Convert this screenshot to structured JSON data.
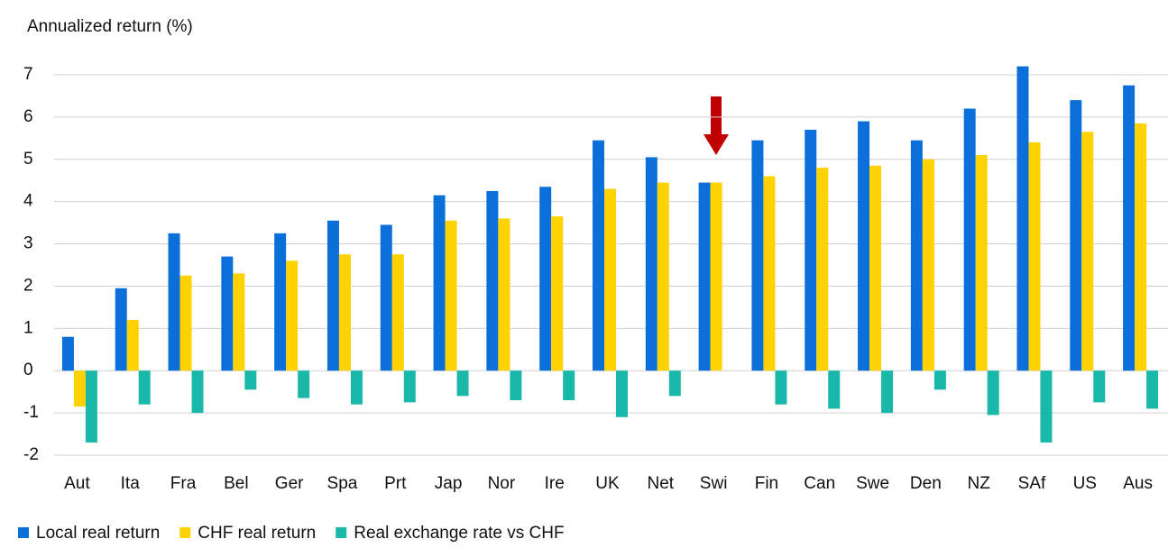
{
  "chart_data": {
    "type": "bar",
    "title": "Annualized return (%)",
    "categories": [
      "Aut",
      "Ita",
      "Fra",
      "Bel",
      "Ger",
      "Spa",
      "Prt",
      "Jap",
      "Nor",
      "Ire",
      "UK",
      "Net",
      "Swi",
      "Fin",
      "Can",
      "Swe",
      "Den",
      "NZ",
      "SAf",
      "US",
      "Aus"
    ],
    "series": [
      {
        "name": "Local real return",
        "color": "#0a6fd8",
        "values": [
          0.8,
          1.95,
          3.25,
          2.7,
          3.25,
          3.55,
          3.45,
          4.15,
          4.25,
          4.35,
          5.45,
          5.05,
          4.45,
          5.45,
          5.7,
          5.9,
          5.45,
          6.2,
          7.2,
          6.4,
          6.75
        ]
      },
      {
        "name": "CHF real return",
        "color": "#ffd200",
        "values": [
          -0.85,
          1.2,
          2.25,
          2.3,
          2.6,
          2.75,
          2.75,
          3.55,
          3.6,
          3.65,
          4.3,
          4.45,
          4.45,
          4.6,
          4.8,
          4.85,
          5.0,
          5.1,
          5.4,
          5.65,
          5.85
        ]
      },
      {
        "name": "Real exchange rate vs CHF",
        "color": "#1ab8a8",
        "values": [
          -1.7,
          -0.8,
          -1.0,
          -0.45,
          -0.65,
          -0.8,
          -0.75,
          -0.6,
          -0.7,
          -0.7,
          -1.1,
          -0.6,
          0,
          -0.8,
          -0.9,
          -1.0,
          -0.45,
          -1.05,
          -1.7,
          -0.75,
          -0.9
        ]
      }
    ],
    "ylim": [
      -2,
      7
    ],
    "yticks": [
      -2,
      -1,
      0,
      1,
      2,
      3,
      4,
      5,
      6,
      7
    ],
    "grid": true
  }
}
